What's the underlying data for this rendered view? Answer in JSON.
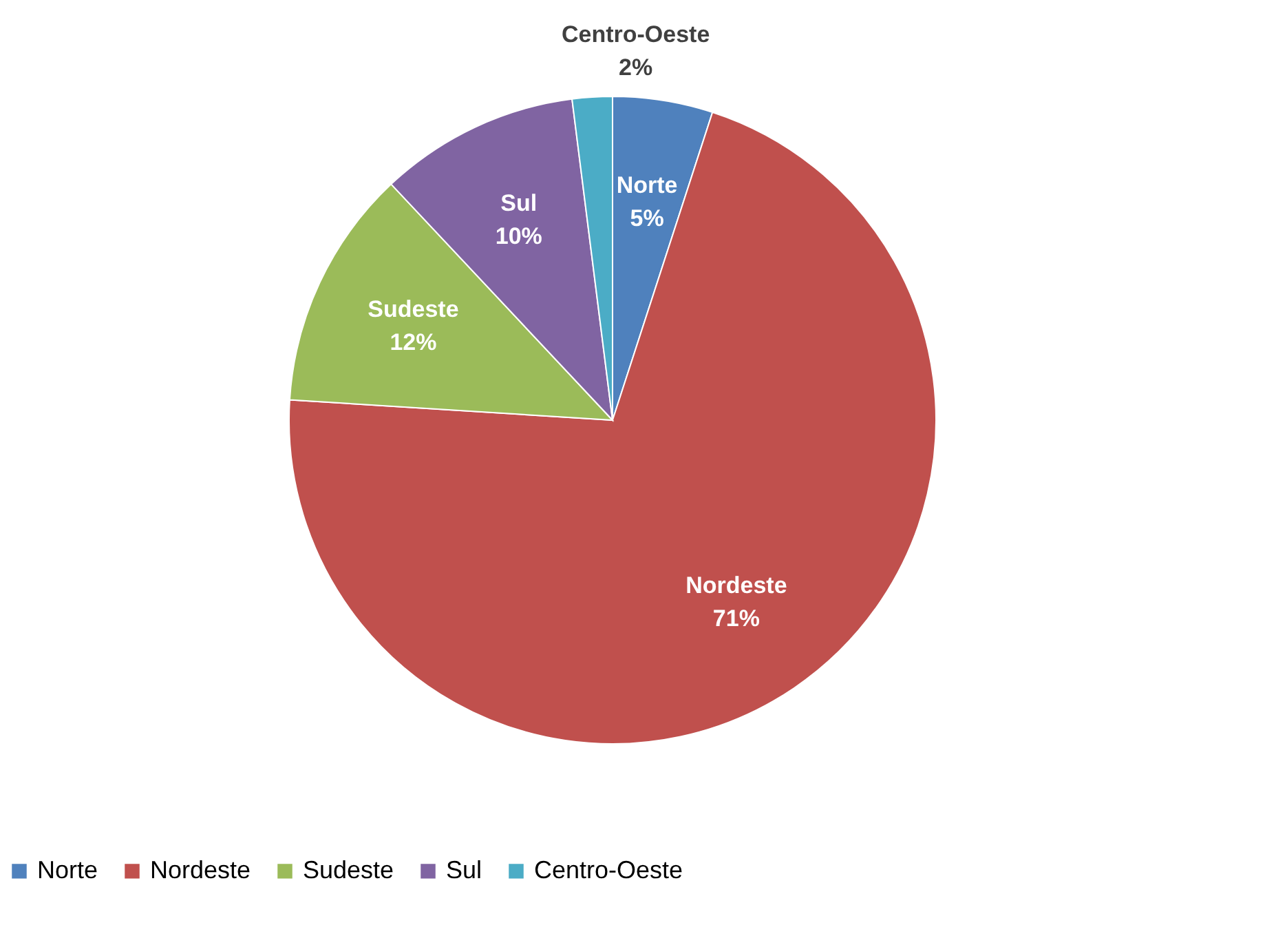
{
  "chart_data": {
    "type": "pie",
    "categories": [
      "Norte",
      "Nordeste",
      "Sudeste",
      "Sul",
      "Centro-Oeste"
    ],
    "values": [
      5,
      71,
      12,
      10,
      2
    ],
    "colors": [
      "#4f81bd",
      "#c0504d",
      "#9bbb59",
      "#8064a2",
      "#4bacc6"
    ],
    "value_labels": [
      "5%",
      "71%",
      "12%",
      "10%",
      "2%"
    ],
    "legend": "bottom"
  }
}
